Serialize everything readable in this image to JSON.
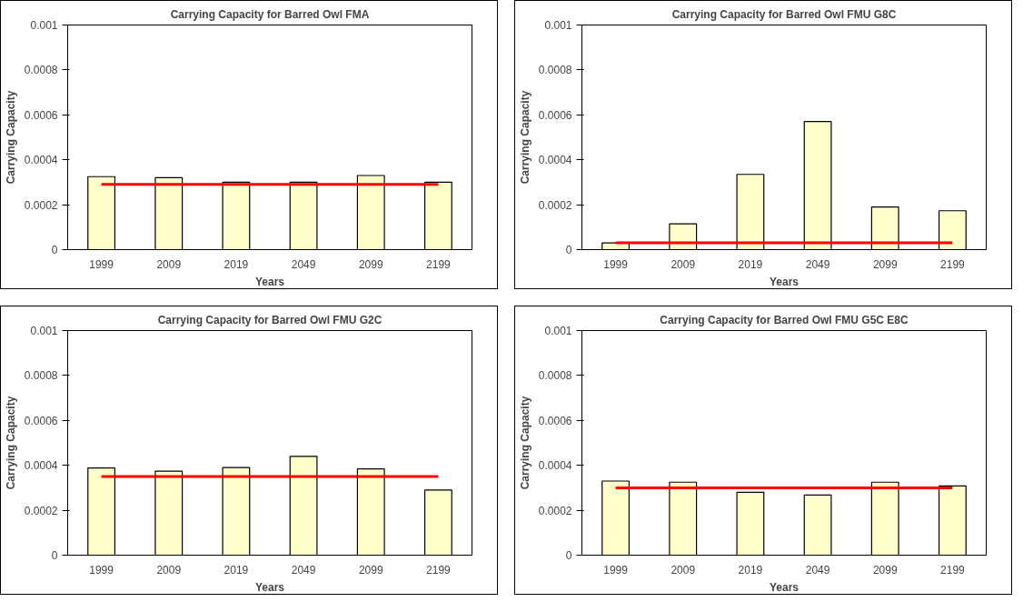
{
  "chart_data": [
    {
      "type": "bar",
      "title": "Carrying Capacity for Barred Owl FMA",
      "xlabel": "Years",
      "ylabel": "Carrying Capacity",
      "categories": [
        "1999",
        "2009",
        "2019",
        "2049",
        "2099",
        "2199"
      ],
      "ylim": [
        0,
        0.001
      ],
      "yticks": [
        0,
        0.0002,
        0.0004,
        0.0006,
        0.0008,
        0.001
      ],
      "grid": false,
      "series": [
        {
          "color": "#ffffcc",
          "values": [
            0.000325,
            0.00032,
            0.0003,
            0.0003,
            0.00033,
            0.0003
          ]
        },
        {
          "type": "line",
          "color": "#ff0000",
          "values": [
            0.00029,
            0.00029,
            0.00029,
            0.00029,
            0.00029,
            0.00029
          ]
        }
      ]
    },
    {
      "type": "bar",
      "title": "Carrying Capacity for Barred Owl FMU G8C",
      "xlabel": "Years",
      "ylabel": "Carrying Capacity",
      "categories": [
        "1999",
        "2009",
        "2019",
        "2049",
        "2099",
        "2199"
      ],
      "ylim": [
        0,
        0.001
      ],
      "yticks": [
        0,
        0.0002,
        0.0004,
        0.0006,
        0.0008,
        0.001
      ],
      "grid": false,
      "series": [
        {
          "color": "#ffffcc",
          "values": [
            3e-05,
            0.000115,
            0.000335,
            0.00057,
            0.00019,
            0.000173
          ]
        },
        {
          "type": "line",
          "color": "#ff0000",
          "values": [
            3e-05,
            3e-05,
            3e-05,
            3e-05,
            3e-05,
            3e-05
          ]
        }
      ]
    },
    {
      "type": "bar",
      "title": "Carrying Capacity for Barred Owl FMU G2C",
      "xlabel": "Years",
      "ylabel": "Carrying Capacity",
      "categories": [
        "1999",
        "2009",
        "2019",
        "2049",
        "2099",
        "2199"
      ],
      "ylim": [
        0,
        0.001
      ],
      "yticks": [
        0,
        0.0002,
        0.0004,
        0.0006,
        0.0008,
        0.001
      ],
      "grid": false,
      "series": [
        {
          "color": "#ffffcc",
          "values": [
            0.000388,
            0.000374,
            0.00039,
            0.00044,
            0.000384,
            0.00029
          ]
        },
        {
          "type": "line",
          "color": "#ff0000",
          "values": [
            0.00035,
            0.00035,
            0.00035,
            0.00035,
            0.00035,
            0.00035
          ]
        }
      ]
    },
    {
      "type": "bar",
      "title": "Carrying Capacity for Barred Owl FMU G5C E8C",
      "xlabel": "Years",
      "ylabel": "Carrying Capacity",
      "categories": [
        "1999",
        "2009",
        "2019",
        "2049",
        "2099",
        "2199"
      ],
      "ylim": [
        0,
        0.001
      ],
      "yticks": [
        0,
        0.0002,
        0.0004,
        0.0006,
        0.0008,
        0.001
      ],
      "grid": false,
      "series": [
        {
          "color": "#ffffcc",
          "values": [
            0.00033,
            0.000325,
            0.00028,
            0.000268,
            0.000325,
            0.000308
          ]
        },
        {
          "type": "line",
          "color": "#ff0000",
          "values": [
            0.0003,
            0.0003,
            0.0003,
            0.0003,
            0.0003,
            0.0003
          ]
        }
      ]
    }
  ]
}
